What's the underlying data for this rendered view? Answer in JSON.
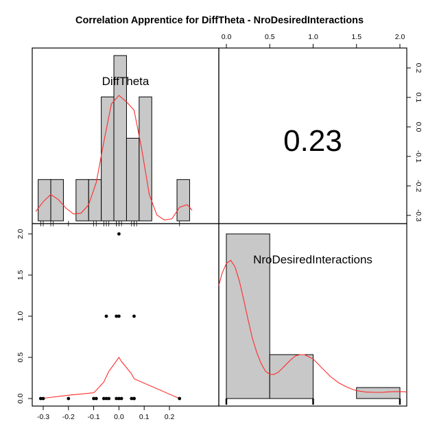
{
  "title": "Correlation Apprentice for DiffTheta - NroDesiredInteractions",
  "variables": [
    "DiffTheta",
    "NroDesiredInteractions"
  ],
  "correlation_label": "0.23",
  "axes": {
    "diff_ticks": [
      "-0.3",
      "-0.2",
      "-0.1",
      "0.0",
      "0.1",
      "0.2"
    ],
    "nro_ticks": [
      "0.0",
      "0.5",
      "1.0",
      "1.5",
      "2.0"
    ]
  },
  "colors": {
    "bar": "#c8c8c8",
    "density": "#ff2a2a"
  },
  "chart_data": [
    {
      "type": "bar",
      "name": "DiffTheta",
      "bins": [
        [
          -0.32,
          -0.27
        ],
        [
          -0.27,
          -0.22
        ],
        [
          -0.22,
          -0.17
        ],
        [
          -0.17,
          -0.12
        ],
        [
          -0.12,
          -0.07
        ],
        [
          -0.07,
          -0.02
        ],
        [
          -0.02,
          0.03
        ],
        [
          0.03,
          0.08
        ],
        [
          0.08,
          0.13
        ],
        [
          0.13,
          0.18
        ],
        [
          0.18,
          0.23
        ],
        [
          0.23,
          0.28
        ]
      ],
      "values": [
        1,
        1,
        0,
        1,
        1,
        3,
        4,
        2,
        3,
        0,
        0,
        1
      ],
      "density": {
        "x": [
          -0.33,
          -0.3,
          -0.27,
          -0.24,
          -0.21,
          -0.18,
          -0.15,
          -0.12,
          -0.09,
          -0.06,
          -0.03,
          0.0,
          0.03,
          0.06,
          0.09,
          0.12,
          0.15,
          0.18,
          0.21,
          0.24,
          0.27,
          0.29
        ],
        "y": [
          0.22,
          0.45,
          0.62,
          0.5,
          0.3,
          0.16,
          0.18,
          0.38,
          0.9,
          1.85,
          2.75,
          2.95,
          2.8,
          2.6,
          1.7,
          0.62,
          0.14,
          0.02,
          0.05,
          0.32,
          0.38,
          0.25
        ]
      },
      "rug": [
        -0.31,
        -0.3,
        -0.27,
        -0.26,
        -0.2,
        -0.1,
        -0.09,
        -0.06,
        -0.05,
        -0.04,
        -0.01,
        -0.01,
        0.0,
        0.0,
        0.01,
        0.05,
        0.06,
        0.06,
        0.07,
        0.24
      ]
    },
    {
      "type": "scatter",
      "x": [
        -0.31,
        -0.3,
        -0.2,
        -0.1,
        -0.09,
        -0.06,
        -0.05,
        -0.04,
        -0.01,
        0.0,
        0.01,
        0.05,
        0.06,
        0.06,
        0.24,
        -0.05,
        -0.01,
        0.0,
        0.06,
        0.0
      ],
      "y": [
        0,
        0,
        0,
        0,
        0,
        0,
        0,
        0,
        0,
        0,
        0,
        0,
        0,
        0,
        0,
        1,
        1,
        1,
        1,
        2
      ],
      "smooth": {
        "x": [
          -0.31,
          -0.2,
          -0.1,
          -0.09,
          -0.06,
          -0.04,
          0.0,
          0.01,
          0.05,
          0.06,
          0.24
        ],
        "y": [
          0.0,
          0.04,
          0.07,
          0.1,
          0.2,
          0.33,
          0.5,
          0.45,
          0.3,
          0.24,
          0.0
        ]
      },
      "xlim": [
        -0.33,
        0.26
      ],
      "ylim": [
        -0.08,
        2.08
      ]
    },
    {
      "type": "bar",
      "name": "NroDesiredInteractions",
      "bins": [
        [
          0.0,
          0.5
        ],
        [
          0.5,
          1.0
        ],
        [
          1.0,
          1.5
        ],
        [
          1.5,
          2.0
        ]
      ],
      "values": [
        15,
        4,
        0,
        1
      ],
      "density": {
        "x": [
          -0.1,
          -0.05,
          0.0,
          0.05,
          0.1,
          0.15,
          0.2,
          0.25,
          0.3,
          0.35,
          0.4,
          0.45,
          0.5,
          0.55,
          0.6,
          0.65,
          0.7,
          0.75,
          0.8,
          0.85,
          0.9,
          0.95,
          1.0,
          1.05,
          1.1,
          1.15,
          1.2,
          1.25,
          1.3,
          1.35,
          1.4,
          1.45,
          1.5,
          1.55,
          1.6,
          1.65,
          1.7,
          1.75,
          1.8,
          1.85,
          1.9,
          1.95,
          2.0,
          2.05,
          2.1
        ],
        "y": [
          10.3,
          11.4,
          12.3,
          12.6,
          12.0,
          10.7,
          9.0,
          7.2,
          5.5,
          4.2,
          3.2,
          2.5,
          2.2,
          2.2,
          2.4,
          2.8,
          3.2,
          3.6,
          3.9,
          4.0,
          4.0,
          3.8,
          3.6,
          3.2,
          2.8,
          2.4,
          2.0,
          1.7,
          1.4,
          1.2,
          1.0,
          0.85,
          0.72,
          0.66,
          0.6,
          0.58,
          0.56,
          0.56,
          0.57,
          0.6,
          0.62,
          0.63,
          0.63,
          0.62,
          0.6
        ]
      },
      "rug": [
        0,
        0,
        0,
        0,
        0,
        0,
        0,
        0,
        0,
        0,
        0,
        0,
        0,
        0,
        0,
        1,
        1,
        1,
        1,
        2
      ]
    }
  ]
}
